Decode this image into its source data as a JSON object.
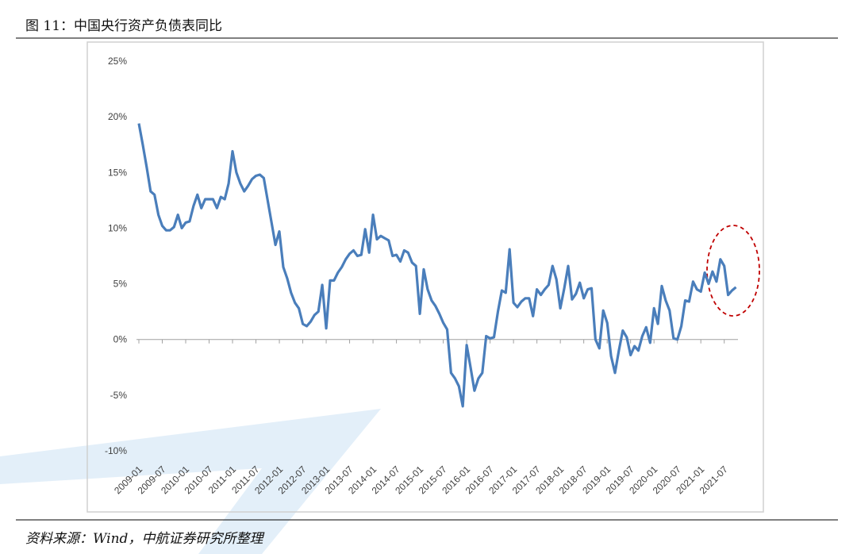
{
  "chart_data": {
    "type": "line",
    "title": "图 11：中国央行资产负债表同比",
    "source": "资料来源：Wind，中航证券研究所整理",
    "categories": [
      "2009-01",
      null,
      null,
      null,
      null,
      null,
      "2009-07",
      null,
      null,
      null,
      null,
      null,
      "2010-01",
      null,
      null,
      null,
      null,
      null,
      "2010-07",
      null,
      null,
      null,
      null,
      null,
      "2011-01",
      null,
      null,
      null,
      null,
      null,
      "2011-07",
      null,
      null,
      null,
      null,
      null,
      "2012-01",
      null,
      null,
      null,
      null,
      null,
      "2012-07",
      null,
      null,
      null,
      null,
      null,
      "2013-01",
      null,
      null,
      null,
      null,
      null,
      "2013-07",
      null,
      null,
      null,
      null,
      null,
      "2014-01",
      null,
      null,
      null,
      null,
      null,
      "2014-07",
      null,
      null,
      null,
      null,
      null,
      "2015-01",
      null,
      null,
      null,
      null,
      null,
      "2015-07",
      null,
      null,
      null,
      null,
      null,
      "2016-01",
      null,
      null,
      null,
      null,
      null,
      "2016-07",
      null,
      null,
      null,
      null,
      null,
      "2017-01",
      null,
      null,
      null,
      null,
      null,
      "2017-07",
      null,
      null,
      null,
      null,
      null,
      "2018-01",
      null,
      null,
      null,
      null,
      null,
      "2018-07",
      null,
      null,
      null,
      null,
      null,
      "2019-01",
      null,
      null,
      null,
      null,
      null,
      "2019-07",
      null,
      null,
      null,
      null,
      null,
      "2020-01",
      null,
      null,
      null,
      null,
      null,
      "2020-07",
      null,
      null,
      null,
      null,
      null,
      "2021-01",
      null,
      null,
      null,
      null,
      null,
      "2021-07",
      null,
      null,
      null
    ],
    "series": [
      {
        "name": "央行资产负债表同比",
        "color": "#4a7ebb",
        "values": [
          19.4,
          17.5,
          15.5,
          13.3,
          13.0,
          11.2,
          10.2,
          9.8,
          9.8,
          10.1,
          11.2,
          10.0,
          10.5,
          10.6,
          12.0,
          13.0,
          11.8,
          12.6,
          12.6,
          12.6,
          11.8,
          12.8,
          12.6,
          14.0,
          16.9,
          15.0,
          14.0,
          13.3,
          13.8,
          14.4,
          14.7,
          14.8,
          14.5,
          12.5,
          10.5,
          8.5,
          9.7,
          6.5,
          5.5,
          4.2,
          3.3,
          2.8,
          1.4,
          1.2,
          1.6,
          2.2,
          2.5,
          4.9,
          1.0,
          5.3,
          5.3,
          6.0,
          6.5,
          7.2,
          7.7,
          8.0,
          7.5,
          7.6,
          9.9,
          7.8,
          11.2,
          9.0,
          9.3,
          9.1,
          8.9,
          7.5,
          7.6,
          7.0,
          8.0,
          7.8,
          6.9,
          6.6,
          2.3,
          6.3,
          4.5,
          3.5,
          3.0,
          2.3,
          1.5,
          0.9,
          -3.0,
          -3.5,
          -4.2,
          -6.0,
          -0.5,
          -2.5,
          -4.6,
          -3.5,
          -3.0,
          0.3,
          0.1,
          0.2,
          2.5,
          4.4,
          4.2,
          8.1,
          3.3,
          2.9,
          3.4,
          3.7,
          3.7,
          2.1,
          4.5,
          4.0,
          4.5,
          4.9,
          6.6,
          5.4,
          2.8,
          4.6,
          6.6,
          3.6,
          4.1,
          5.1,
          3.7,
          4.5,
          4.6,
          0,
          -0.8,
          2.6,
          1.5,
          -1.5,
          -3.0,
          -1.0,
          0.8,
          0.2,
          -1.4,
          -0.6,
          -1.0,
          0.3,
          1.1,
          -0.3,
          2.8,
          1.4,
          4.8,
          3.5,
          2.6,
          0.1,
          0,
          1.2,
          3.5,
          3.4,
          5.2,
          4.5,
          4.3,
          6.0,
          5.0,
          6.1,
          5.2,
          7.2,
          6.6,
          4.0,
          4.4,
          4.7
        ]
      }
    ],
    "ylim": [
      -10,
      25
    ],
    "yticks": [
      {
        "value": -10,
        "label": "-10%"
      },
      {
        "value": -5,
        "label": "-5%"
      },
      {
        "value": 0,
        "label": "0%"
      },
      {
        "value": 5,
        "label": "5%"
      },
      {
        "value": 10,
        "label": "10%"
      },
      {
        "value": 15,
        "label": "15%"
      },
      {
        "value": 20,
        "label": "20%"
      },
      {
        "value": 25,
        "label": "25%"
      }
    ],
    "grid": false
  }
}
